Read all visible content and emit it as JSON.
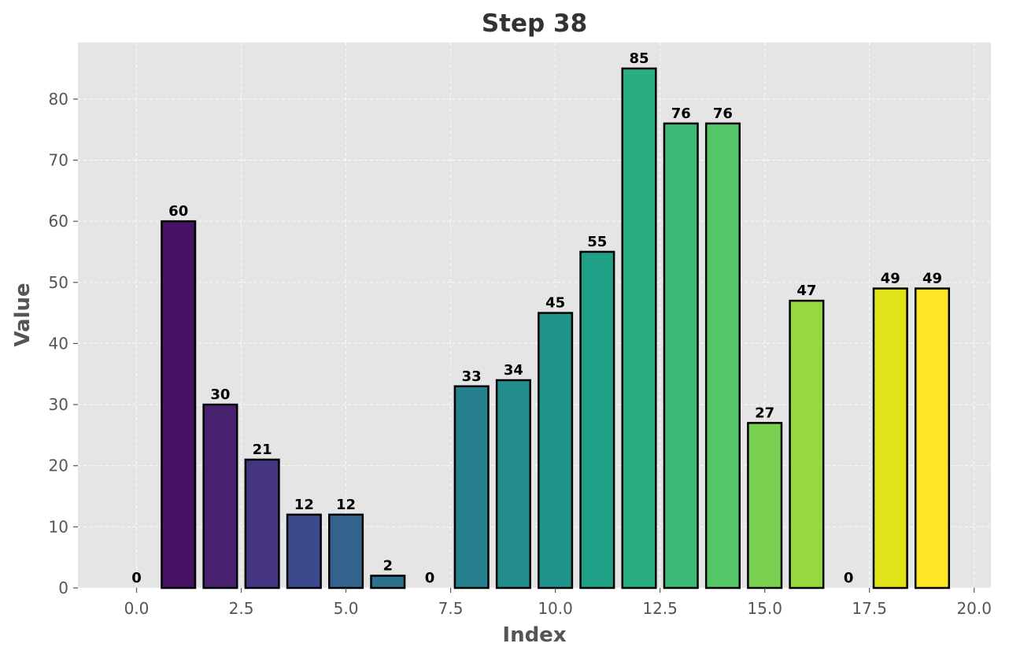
{
  "chart_data": {
    "type": "bar",
    "title": "Step 38",
    "xlabel": "Index",
    "ylabel": "Value",
    "x": [
      0,
      1,
      2,
      3,
      4,
      5,
      6,
      7,
      8,
      9,
      10,
      11,
      12,
      13,
      14,
      15,
      16,
      17,
      18,
      19
    ],
    "values": [
      0,
      60,
      30,
      21,
      12,
      12,
      2,
      0,
      33,
      34,
      45,
      55,
      85,
      76,
      76,
      27,
      47,
      0,
      49,
      49
    ],
    "data_labels": [
      "0",
      "60",
      "30",
      "21",
      "12",
      "12",
      "2",
      "0",
      "33",
      "34",
      "45",
      "55",
      "85",
      "76",
      "76",
      "27",
      "47",
      "0",
      "49",
      "49"
    ],
    "colors": [
      "#440154",
      "#471164",
      "#48226f",
      "#453581",
      "#3b4a8c",
      "#33638d",
      "#2d718e",
      "#287d8e",
      "#27808e",
      "#228c8d",
      "#20938c",
      "#1fa187",
      "#29af7f",
      "#3bbb75",
      "#55c667",
      "#7ad151",
      "#96d83e",
      "#bddf26",
      "#dfe318",
      "#fde725"
    ],
    "xlim": [
      -1.4,
      20.4
    ],
    "ylim": [
      0,
      89.25
    ],
    "xticks": [
      0.0,
      2.5,
      5.0,
      7.5,
      10.0,
      12.5,
      15.0,
      17.5,
      20.0
    ],
    "xtick_labels": [
      "0.0",
      "2.5",
      "5.0",
      "7.5",
      "10.0",
      "12.5",
      "15.0",
      "17.5",
      "20.0"
    ],
    "yticks": [
      0,
      10,
      20,
      30,
      40,
      50,
      60,
      70,
      80
    ],
    "ytick_labels": [
      "0",
      "10",
      "20",
      "30",
      "40",
      "50",
      "60",
      "70",
      "80"
    ],
    "grid": true,
    "background": "#e5e5e5",
    "edge_color": "#000000"
  }
}
